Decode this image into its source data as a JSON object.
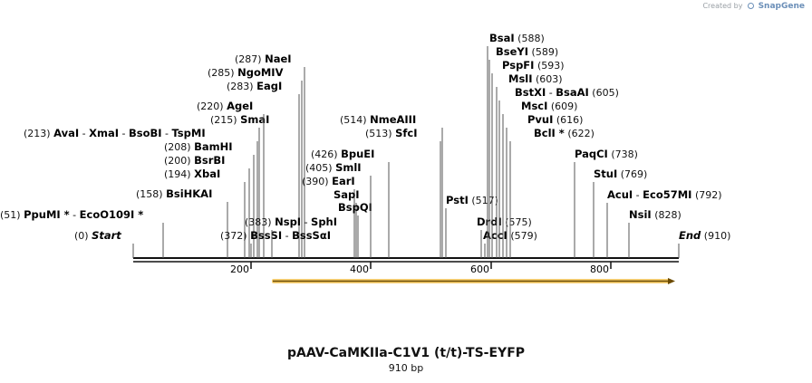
{
  "credit": {
    "prefix": "Created by",
    "brand": "SnapGene"
  },
  "map": {
    "title": "pAAV-CaMKIIa-C1V1 (t/t)-TS-EYFP",
    "length_label": "910 bp",
    "ruler_ticks": [
      "200",
      "400",
      "600",
      "800"
    ],
    "feature_arrow_color": "#f2a900",
    "sites": [
      {
        "pos": "(0)",
        "names": [
          "Start"
        ],
        "italic": true
      },
      {
        "pos": "(51)",
        "names": [
          "PpuMI *",
          "EcoO109I *"
        ]
      },
      {
        "pos": "(158)",
        "names": [
          "BsiHKAI"
        ]
      },
      {
        "pos": "(194)",
        "names": [
          "XbaI"
        ]
      },
      {
        "pos": "(200)",
        "names": [
          "BsrBI"
        ]
      },
      {
        "pos": "(208)",
        "names": [
          "BamHI"
        ]
      },
      {
        "pos": "(213)",
        "names": [
          "AvaI",
          "XmaI",
          "BsoBI",
          "TspMI"
        ]
      },
      {
        "pos": "(215)",
        "names": [
          "SmaI"
        ]
      },
      {
        "pos": "(220)",
        "names": [
          "AgeI"
        ]
      },
      {
        "pos": "(283)",
        "names": [
          "EagI"
        ]
      },
      {
        "pos": "(285)",
        "names": [
          "NgoMIV"
        ]
      },
      {
        "pos": "(287)",
        "names": [
          "NaeI"
        ]
      },
      {
        "pos": "(372)",
        "names": [
          "BssSI",
          "BssSαI"
        ]
      },
      {
        "pos": "(383)",
        "names": [
          "NspI",
          "SphI"
        ]
      },
      {
        "pos": "(390)",
        "names": [
          "EarI"
        ]
      },
      {
        "pos": "",
        "names": [
          "SapI"
        ]
      },
      {
        "pos": "",
        "names": [
          "BspQI"
        ]
      },
      {
        "pos": "(405)",
        "names": [
          "SmlI"
        ]
      },
      {
        "pos": "(426)",
        "names": [
          "BpuEI"
        ]
      },
      {
        "pos": "(513)",
        "names": [
          "SfcI"
        ]
      },
      {
        "pos": "(514)",
        "names": [
          "NmeAIII"
        ]
      },
      {
        "pos": "(517)",
        "names": [
          "PstI"
        ]
      },
      {
        "pos": "(575)",
        "names": [
          "DrdI"
        ]
      },
      {
        "pos": "(579)",
        "names": [
          "AccI"
        ]
      },
      {
        "pos": "(588)",
        "names": [
          "BsaI"
        ]
      },
      {
        "pos": "(589)",
        "names": [
          "BseYI"
        ]
      },
      {
        "pos": "(593)",
        "names": [
          "PspFI"
        ]
      },
      {
        "pos": "(603)",
        "names": [
          "MslI"
        ]
      },
      {
        "pos": "(605)",
        "names": [
          "BstXI",
          "BsaAI"
        ]
      },
      {
        "pos": "(609)",
        "names": [
          "MscI"
        ]
      },
      {
        "pos": "(616)",
        "names": [
          "PvuI"
        ]
      },
      {
        "pos": "(622)",
        "names": [
          "BclI *"
        ]
      },
      {
        "pos": "(738)",
        "names": [
          "PaqCI"
        ]
      },
      {
        "pos": "(769)",
        "names": [
          "StuI"
        ]
      },
      {
        "pos": "(792)",
        "names": [
          "AcuI",
          "Eco57MI"
        ]
      },
      {
        "pos": "(828)",
        "names": [
          "NsiI"
        ]
      },
      {
        "pos": "(910)",
        "names": [
          "End"
        ],
        "italic": true
      }
    ]
  }
}
